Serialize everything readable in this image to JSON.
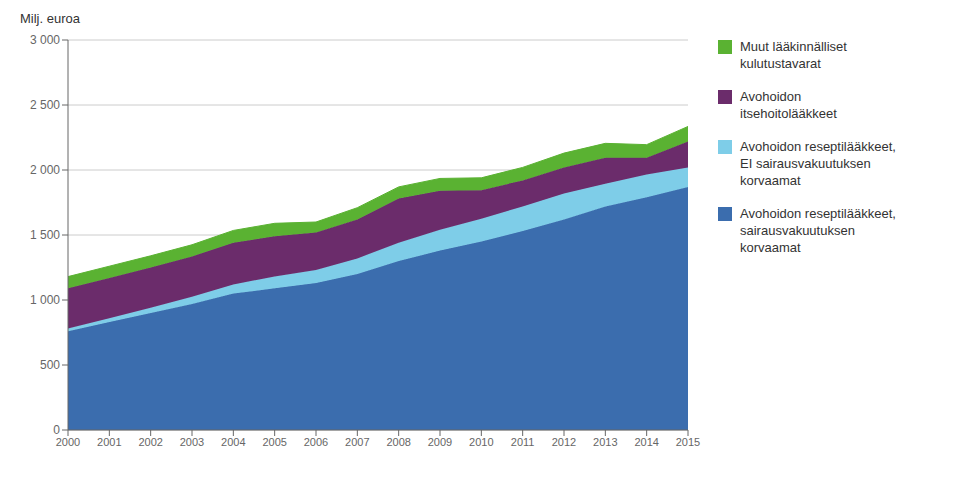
{
  "chart_data": {
    "type": "area",
    "stacked": true,
    "y_label": "Milj. euroa",
    "x": [
      2000,
      2001,
      2002,
      2003,
      2004,
      2005,
      2006,
      2007,
      2008,
      2009,
      2010,
      2011,
      2012,
      2013,
      2014,
      2015
    ],
    "xlim": [
      2000,
      2015
    ],
    "xticks": [
      2000,
      2001,
      2002,
      2003,
      2004,
      2005,
      2006,
      2007,
      2008,
      2009,
      2010,
      2011,
      2012,
      2013,
      2014,
      2015
    ],
    "ylim": [
      0,
      3000
    ],
    "yticks": [
      0,
      500,
      {
        "value": 1000,
        "label": "1 000"
      },
      {
        "value": 1500,
        "label": "1 500"
      },
      {
        "value": 2000,
        "label": "2 000"
      },
      {
        "value": 2500,
        "label": "2 500"
      },
      {
        "value": 3000,
        "label": "3 000"
      }
    ],
    "grid": true,
    "legend": "right",
    "series": [
      {
        "name": "Avohoidon reseptilääkkeet,\nsairausvakuutuksen\nkorvaamat",
        "color": "#3B6DAE",
        "values": [
          760,
          830,
          900,
          970,
          1050,
          1090,
          1130,
          1200,
          1300,
          1380,
          1450,
          1530,
          1620,
          1720,
          1790,
          1870
        ]
      },
      {
        "name": "Avohoidon reseptilääkkeet,\nEI sairausvakuutuksen\nkorvaamat",
        "color": "#7ECDE8",
        "values": [
          20,
          30,
          40,
          55,
          70,
          90,
          100,
          120,
          140,
          160,
          175,
          190,
          200,
          175,
          175,
          150
        ]
      },
      {
        "name": "Avohoidon\nitsehoitolääkkeet",
        "color": "#6B2C6B",
        "values": [
          310,
          310,
          310,
          310,
          320,
          310,
          290,
          300,
          340,
          300,
          220,
          200,
          200,
          200,
          130,
          200
        ]
      },
      {
        "name": "Muut lääkinnälliset\nkulutustavarat",
        "color": "#5AB232",
        "values": [
          90,
          90,
          90,
          90,
          95,
          100,
          80,
          90,
          90,
          95,
          95,
          100,
          110,
          110,
          100,
          115
        ]
      }
    ]
  }
}
